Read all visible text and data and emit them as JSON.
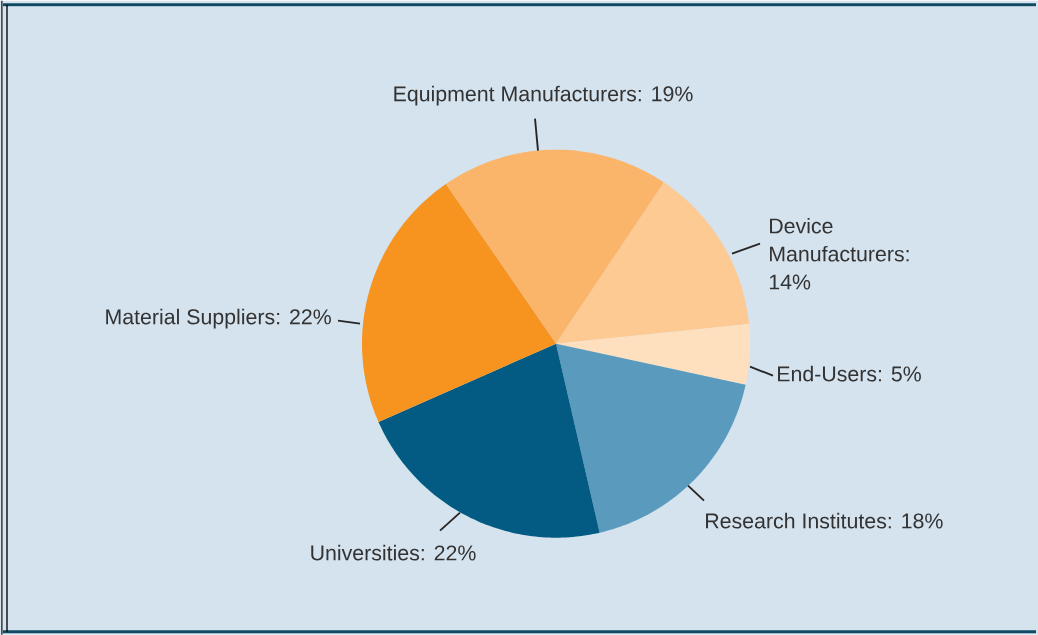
{
  "chart_data": {
    "type": "pie",
    "categories": [
      "Equipment Manufacturers: 19%",
      "Device Manufacturers: 14%",
      "End-Users: 5%",
      "Research Institutes: 18%",
      "Universities: 22%",
      "Material Suppliers: 22%"
    ],
    "values": [
      19,
      14,
      5,
      18,
      22,
      22
    ],
    "colors": [
      "#fbb56b",
      "#fdca93",
      "#fee0bf",
      "#5a9bbd",
      "#035a82",
      "#f6941f"
    ]
  }
}
